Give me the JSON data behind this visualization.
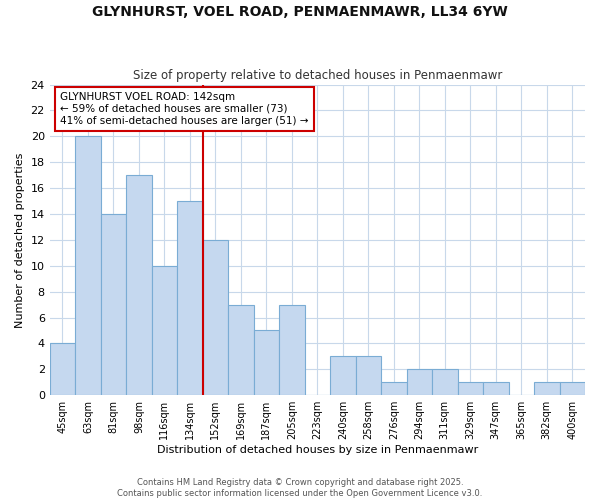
{
  "title_line1": "GLYNHURST, VOEL ROAD, PENMAENMAWR, LL34 6YW",
  "title_line2": "Size of property relative to detached houses in Penmaenmawr",
  "xlabel": "Distribution of detached houses by size in Penmaenmawr",
  "ylabel": "Number of detached properties",
  "categories": [
    "45sqm",
    "63sqm",
    "81sqm",
    "98sqm",
    "116sqm",
    "134sqm",
    "152sqm",
    "169sqm",
    "187sqm",
    "205sqm",
    "223sqm",
    "240sqm",
    "258sqm",
    "276sqm",
    "294sqm",
    "311sqm",
    "329sqm",
    "347sqm",
    "365sqm",
    "382sqm",
    "400sqm"
  ],
  "values": [
    4,
    20,
    14,
    17,
    10,
    15,
    12,
    7,
    5,
    7,
    0,
    3,
    3,
    1,
    2,
    2,
    1,
    1,
    0,
    1,
    1
  ],
  "bar_color": "#c5d8ef",
  "bar_edge_color": "#7aacd4",
  "grid_color": "#c8d8ea",
  "background_color": "#ffffff",
  "plot_bg_color": "#ffffff",
  "vline_color": "#cc0000",
  "vline_x": 5.5,
  "annotation_text": "GLYNHURST VOEL ROAD: 142sqm\n← 59% of detached houses are smaller (73)\n41% of semi-detached houses are larger (51) →",
  "annotation_box_color": "#ffffff",
  "annotation_box_edge": "#cc0000",
  "ylim": [
    0,
    24
  ],
  "yticks": [
    0,
    2,
    4,
    6,
    8,
    10,
    12,
    14,
    16,
    18,
    20,
    22,
    24
  ],
  "footer": "Contains HM Land Registry data © Crown copyright and database right 2025.\nContains public sector information licensed under the Open Government Licence v3.0."
}
